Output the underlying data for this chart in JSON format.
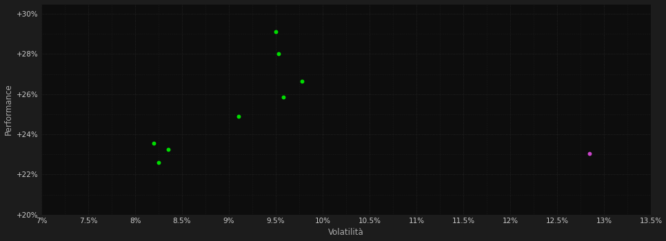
{
  "background_color": "#1c1c1c",
  "plot_bg_color": "#0d0d0d",
  "grid_color": "#2a2a2a",
  "xlabel": "Volatilità",
  "ylabel": "Performance",
  "xlim": [
    0.07,
    0.135
  ],
  "ylim": [
    0.2,
    0.305
  ],
  "xticks": [
    0.07,
    0.075,
    0.08,
    0.085,
    0.09,
    0.095,
    0.1,
    0.105,
    0.11,
    0.115,
    0.12,
    0.125,
    0.13,
    0.135
  ],
  "xtick_labels": [
    "7%",
    "7.5%",
    "8%",
    "8.5%",
    "9%",
    "9.5%",
    "10%",
    "10.5%",
    "11%",
    "11.5%",
    "12%",
    "12.5%",
    "13%",
    "13.5%"
  ],
  "yticks": [
    0.2,
    0.22,
    0.24,
    0.26,
    0.28,
    0.3
  ],
  "ytick_labels": [
    "+20%",
    "+22%",
    "+24%",
    "+26%",
    "+28%",
    "+30%"
  ],
  "green_points": [
    [
      0.082,
      0.2355
    ],
    [
      0.0835,
      0.2325
    ],
    [
      0.0825,
      0.226
    ],
    [
      0.091,
      0.249
    ],
    [
      0.095,
      0.291
    ],
    [
      0.0953,
      0.28
    ],
    [
      0.0978,
      0.2665
    ],
    [
      0.0958,
      0.2585
    ]
  ],
  "magenta_point": [
    0.1285,
    0.2305
  ],
  "green_color": "#00dd00",
  "magenta_color": "#cc44cc",
  "marker_size": 18,
  "tick_color": "#cccccc",
  "label_color": "#aaaaaa",
  "font_size_ticks": 7.5,
  "font_size_labels": 8.5
}
